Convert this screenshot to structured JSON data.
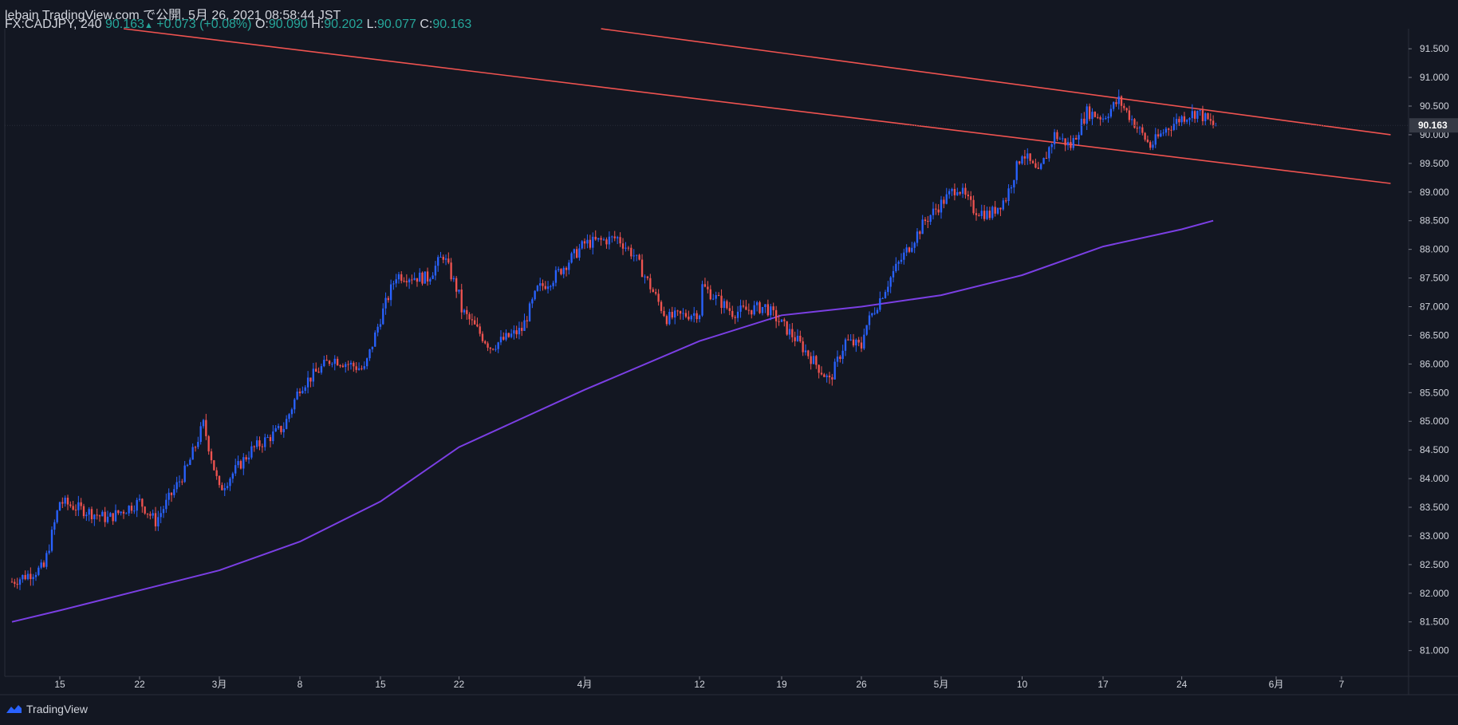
{
  "header": {
    "publish_line": "lebain TradingView.com で公開, 5月 26, 2021 08:58:44 JST",
    "symbol": "FX:CADJPY, 240",
    "last": "90.163",
    "change": "+0.073 (+0.08%)",
    "o_label": "O:",
    "o_value": "90.090",
    "h_label": "H:",
    "h_value": "90.202",
    "l_label": "L:",
    "l_value": "90.077",
    "c_label": "C:",
    "c_value": "90.163"
  },
  "footer": {
    "brand": "TradingView",
    "logo_icon": "tradingview-logo-icon"
  },
  "colors": {
    "background": "#131722",
    "up": "#2962ff",
    "down": "#ef5350",
    "ma": "#7b3fe4",
    "trendline": "#f05350",
    "text": "#d1d4dc"
  },
  "chart_data": {
    "type": "candlestick",
    "symbol": "FX:CADJPY",
    "interval": "240",
    "ylim": [
      80.55,
      91.85
    ],
    "y_ticks": [
      "81.000",
      "81.500",
      "82.000",
      "82.500",
      "83.000",
      "83.500",
      "84.000",
      "84.500",
      "85.000",
      "85.500",
      "86.000",
      "86.500",
      "87.000",
      "87.500",
      "88.000",
      "88.500",
      "89.000",
      "89.500",
      "90.000",
      "90.500",
      "91.000",
      "91.500"
    ],
    "x_ticks": [
      {
        "label": "15",
        "date": "2021-02-15"
      },
      {
        "label": "22",
        "date": "2021-02-22"
      },
      {
        "label": "3月",
        "date": "2021-03-01"
      },
      {
        "label": "8",
        "date": "2021-03-08"
      },
      {
        "label": "15",
        "date": "2021-03-15"
      },
      {
        "label": "22",
        "date": "2021-03-22"
      },
      {
        "label": "4月",
        "date": "2021-04-01"
      },
      {
        "label": "12",
        "date": "2021-04-12"
      },
      {
        "label": "19",
        "date": "2021-04-19"
      },
      {
        "label": "26",
        "date": "2021-04-26"
      },
      {
        "label": "5月",
        "date": "2021-05-03"
      },
      {
        "label": "10",
        "date": "2021-05-10"
      },
      {
        "label": "17",
        "date": "2021-05-17"
      },
      {
        "label": "24",
        "date": "2021-05-24"
      },
      {
        "label": "6月",
        "date": "2021-06-01"
      },
      {
        "label": "7",
        "date": "2021-06-07"
      }
    ],
    "price_label": "90.163",
    "price_key_points": [
      {
        "date": "2021-02-10",
        "close": 82.2
      },
      {
        "date": "2021-02-12",
        "close": 82.45
      },
      {
        "date": "2021-02-15",
        "close": 83.6
      },
      {
        "date": "2021-02-18",
        "close": 83.3
      },
      {
        "date": "2021-02-22",
        "close": 83.6
      },
      {
        "date": "2021-02-23",
        "close": 83.25
      },
      {
        "date": "2021-02-25",
        "close": 84.2
      },
      {
        "date": "2021-02-26",
        "close": 84.95
      },
      {
        "date": "2021-03-01",
        "close": 83.8
      },
      {
        "date": "2021-03-03",
        "close": 84.5
      },
      {
        "date": "2021-03-05",
        "close": 84.9
      },
      {
        "date": "2021-03-08",
        "close": 85.6
      },
      {
        "date": "2021-03-10",
        "close": 86.1
      },
      {
        "date": "2021-03-12",
        "close": 85.9
      },
      {
        "date": "2021-03-15",
        "close": 86.8
      },
      {
        "date": "2021-03-16",
        "close": 87.55
      },
      {
        "date": "2021-03-18",
        "close": 87.5
      },
      {
        "date": "2021-03-19",
        "close": 87.9
      },
      {
        "date": "2021-03-20",
        "close": 87.2
      },
      {
        "date": "2021-03-22",
        "close": 87.0
      },
      {
        "date": "2021-03-24",
        "close": 86.3
      },
      {
        "date": "2021-03-26",
        "close": 86.6
      },
      {
        "date": "2021-03-28",
        "close": 87.3
      },
      {
        "date": "2021-03-30",
        "close": 87.5
      },
      {
        "date": "2021-04-01",
        "close": 88.1
      },
      {
        "date": "2021-04-03",
        "close": 88.2
      },
      {
        "date": "2021-04-06",
        "close": 87.9
      },
      {
        "date": "2021-04-08",
        "close": 86.8
      },
      {
        "date": "2021-04-10",
        "close": 86.9
      },
      {
        "date": "2021-04-12",
        "close": 87.4
      },
      {
        "date": "2021-04-14",
        "close": 86.9
      },
      {
        "date": "2021-04-16",
        "close": 87.0
      },
      {
        "date": "2021-04-19",
        "close": 86.7
      },
      {
        "date": "2021-04-20",
        "close": 86.4
      },
      {
        "date": "2021-04-22",
        "close": 85.7
      },
      {
        "date": "2021-04-23",
        "close": 86.4
      },
      {
        "date": "2021-04-25",
        "close": 86.3
      },
      {
        "date": "2021-04-26",
        "close": 86.5
      },
      {
        "date": "2021-04-28",
        "close": 87.6
      },
      {
        "date": "2021-04-30",
        "close": 88.5
      },
      {
        "date": "2021-05-03",
        "close": 88.8
      },
      {
        "date": "2021-05-04",
        "close": 89.1
      },
      {
        "date": "2021-05-05",
        "close": 88.7
      },
      {
        "date": "2021-05-06",
        "close": 88.6
      },
      {
        "date": "2021-05-07",
        "close": 88.9
      },
      {
        "date": "2021-05-10",
        "close": 89.7
      },
      {
        "date": "2021-05-11",
        "close": 89.3
      },
      {
        "date": "2021-05-12",
        "close": 90.0
      },
      {
        "date": "2021-05-13",
        "close": 89.8
      },
      {
        "date": "2021-05-14",
        "close": 90.4
      },
      {
        "date": "2021-05-17",
        "close": 90.3
      },
      {
        "date": "2021-05-18",
        "close": 90.6
      },
      {
        "date": "2021-05-19",
        "close": 90.2
      },
      {
        "date": "2021-05-20",
        "close": 89.8
      },
      {
        "date": "2021-05-21",
        "close": 90.1
      },
      {
        "date": "2021-05-24",
        "close": 90.3
      },
      {
        "date": "2021-05-25",
        "close": 90.4
      },
      {
        "date": "2021-05-26",
        "close": 90.163
      }
    ],
    "moving_average": [
      {
        "date": "2021-02-10",
        "value": 81.5
      },
      {
        "date": "2021-02-15",
        "value": 81.7
      },
      {
        "date": "2021-02-22",
        "value": 82.05
      },
      {
        "date": "2021-03-01",
        "value": 82.4
      },
      {
        "date": "2021-03-08",
        "value": 82.9
      },
      {
        "date": "2021-03-15",
        "value": 83.6
      },
      {
        "date": "2021-03-22",
        "value": 84.55
      },
      {
        "date": "2021-04-01",
        "value": 85.55
      },
      {
        "date": "2021-04-12",
        "value": 86.4
      },
      {
        "date": "2021-04-19",
        "value": 86.85
      },
      {
        "date": "2021-04-26",
        "value": 87.0
      },
      {
        "date": "2021-05-03",
        "value": 87.2
      },
      {
        "date": "2021-05-10",
        "value": 87.55
      },
      {
        "date": "2021-05-17",
        "value": 88.05
      },
      {
        "date": "2021-05-24",
        "value": 88.35
      },
      {
        "date": "2021-05-26",
        "value": 88.5
      }
    ],
    "trendlines": [
      {
        "from": {
          "date": "2021-02-19",
          "value": 91.85
        },
        "to": {
          "date": "2021-06-10",
          "value": 89.15
        }
      },
      {
        "from": {
          "date": "2021-04-02",
          "value": 91.85
        },
        "to": {
          "date": "2021-06-10",
          "value": 90.0
        }
      }
    ]
  }
}
